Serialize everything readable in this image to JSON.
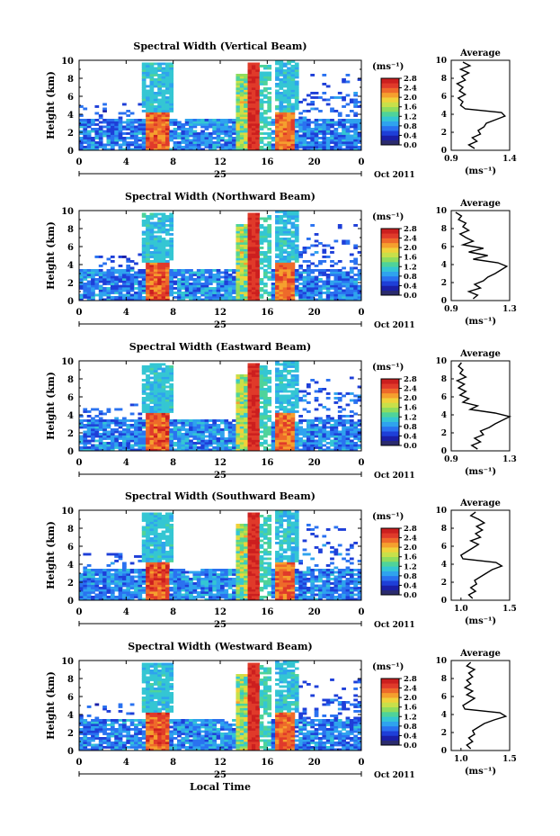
{
  "chart_data": [
    {
      "type": "heatmap",
      "title": "Spectral Width (Vertical Beam)",
      "ylabel": "Height (km)",
      "xlim": [
        0,
        24
      ],
      "ylim": [
        0,
        10
      ],
      "x_ticks": [
        "0",
        "4",
        "8",
        "12",
        "16",
        "20",
        "0"
      ],
      "y_ticks": [
        "0",
        "2",
        "4",
        "6",
        "8",
        "10"
      ],
      "day_label": "25",
      "date_label": "Oct 2011",
      "colorbar": {
        "unit": "(ms⁻¹)",
        "min": 0.0,
        "max": 2.8,
        "ticks": [
          "0.0",
          "0.4",
          "0.8",
          "1.2",
          "1.6",
          "2.0",
          "2.4",
          "2.8"
        ]
      },
      "average": {
        "title": "Average",
        "xlabel": "(ms⁻¹)",
        "xlim": [
          0.9,
          1.4
        ],
        "xticks": [
          "0.9",
          "1.4"
        ],
        "heights": [
          0.2,
          0.6,
          1,
          1.4,
          1.8,
          2.2,
          2.6,
          3,
          3.4,
          3.8,
          4.2,
          4.6,
          5,
          5.4,
          5.8,
          6.2,
          6.6,
          7,
          7.4,
          7.8,
          8.2,
          8.6,
          9,
          9.4,
          9.8
        ],
        "values": [
          1.1,
          1.05,
          1.12,
          1.08,
          1.15,
          1.13,
          1.18,
          1.2,
          1.28,
          1.36,
          1.33,
          1.02,
          0.98,
          1.0,
          0.96,
          1.02,
          0.97,
          1.0,
          0.95,
          1.02,
          0.99,
          1.05,
          0.98,
          1.06,
          1.0
        ]
      }
    },
    {
      "type": "heatmap",
      "title": "Spectral Width (Northward Beam)",
      "ylabel": "Height (km)",
      "xlim": [
        0,
        24
      ],
      "ylim": [
        0,
        10
      ],
      "x_ticks": [
        "0",
        "4",
        "8",
        "12",
        "16",
        "20",
        "0"
      ],
      "y_ticks": [
        "0",
        "2",
        "4",
        "6",
        "8",
        "10"
      ],
      "day_label": "25",
      "date_label": "Oct 2011",
      "colorbar": {
        "unit": "(ms⁻¹)",
        "min": 0.0,
        "max": 2.8,
        "ticks": [
          "0.0",
          "0.4",
          "0.8",
          "1.2",
          "1.6",
          "2.0",
          "2.4",
          "2.8"
        ]
      },
      "average": {
        "title": "Average",
        "xlabel": "(ms⁻¹)",
        "xlim": [
          0.9,
          1.3
        ],
        "xticks": [
          "0.9",
          "1.3"
        ],
        "heights": [
          0.2,
          0.6,
          1,
          1.4,
          1.8,
          2.2,
          2.6,
          3,
          3.4,
          3.8,
          4.2,
          4.6,
          5,
          5.4,
          5.8,
          6.2,
          6.6,
          7,
          7.4,
          7.8,
          8.2,
          8.6,
          9,
          9.4,
          9.8
        ],
        "values": [
          1.05,
          1.08,
          1.02,
          1.1,
          1.06,
          1.12,
          1.15,
          1.2,
          1.24,
          1.28,
          1.22,
          1.05,
          1.15,
          1.02,
          1.12,
          0.98,
          1.05,
          1.0,
          0.96,
          1.02,
          0.98,
          1.0,
          0.95,
          0.97,
          0.93
        ]
      }
    },
    {
      "type": "heatmap",
      "title": "Spectral Width (Eastward Beam)",
      "ylabel": "Height (km)",
      "xlim": [
        0,
        24
      ],
      "ylim": [
        0,
        10
      ],
      "x_ticks": [
        "0",
        "4",
        "8",
        "12",
        "16",
        "20",
        "0"
      ],
      "y_ticks": [
        "0",
        "2",
        "4",
        "6",
        "8",
        "10"
      ],
      "day_label": "25",
      "date_label": "Oct 2011",
      "colorbar": {
        "unit": "(ms⁻¹)",
        "min": 0.0,
        "max": 2.8,
        "ticks": [
          "0.0",
          "0.4",
          "0.8",
          "1.2",
          "1.6",
          "2.0",
          "2.4",
          "2.8"
        ]
      },
      "average": {
        "title": "Average",
        "xlabel": "(ms⁻¹)",
        "xlim": [
          0.9,
          1.3
        ],
        "xticks": [
          "0.9",
          "1.3"
        ],
        "heights": [
          0.2,
          0.6,
          1,
          1.4,
          1.8,
          2.2,
          2.6,
          3,
          3.4,
          3.8,
          4.2,
          4.6,
          5,
          5.4,
          5.8,
          6.2,
          6.6,
          7,
          7.4,
          7.8,
          8.2,
          8.6,
          9,
          9.4,
          9.8
        ],
        "values": [
          1.08,
          1.04,
          1.1,
          1.06,
          1.12,
          1.1,
          1.16,
          1.2,
          1.25,
          1.3,
          1.2,
          1.03,
          1.08,
          0.98,
          1.02,
          0.96,
          1.0,
          0.95,
          0.99,
          0.94,
          1.0,
          0.96,
          0.98,
          0.95,
          0.97
        ]
      }
    },
    {
      "type": "heatmap",
      "title": "Spectral Width (Southward Beam)",
      "ylabel": "Height (km)",
      "xlim": [
        0,
        24
      ],
      "ylim": [
        0,
        10
      ],
      "x_ticks": [
        "0",
        "4",
        "8",
        "12",
        "16",
        "20",
        "0"
      ],
      "y_ticks": [
        "0",
        "2",
        "4",
        "6",
        "8",
        "10"
      ],
      "day_label": "25",
      "date_label": "Oct 2011",
      "colorbar": {
        "unit": "(ms⁻¹)",
        "min": 0.0,
        "max": 2.8,
        "ticks": [
          "0.0",
          "0.4",
          "0.8",
          "1.2",
          "1.6",
          "2.0",
          "2.4",
          "2.8"
        ]
      },
      "average": {
        "title": "Average",
        "xlabel": "(ms⁻¹)",
        "xlim": [
          0.9,
          1.5
        ],
        "xticks": [
          "1.0",
          "1.5"
        ],
        "heights": [
          0.2,
          0.6,
          1,
          1.4,
          1.8,
          2.2,
          2.6,
          3,
          3.4,
          3.8,
          4.2,
          4.6,
          5,
          5.4,
          5.8,
          6.2,
          6.6,
          7,
          7.4,
          7.8,
          8.2,
          8.6,
          9,
          9.4,
          9.8
        ],
        "values": [
          1.12,
          1.08,
          1.15,
          1.1,
          1.16,
          1.14,
          1.2,
          1.26,
          1.32,
          1.42,
          1.36,
          1.02,
          1.0,
          1.06,
          1.12,
          1.18,
          1.1,
          1.2,
          1.15,
          1.22,
          1.16,
          1.24,
          1.18,
          1.1,
          1.15
        ]
      }
    },
    {
      "type": "heatmap",
      "title": "Spectral Width (Westward Beam)",
      "ylabel": "Height (km)",
      "xlabel": "Local Time",
      "xlim": [
        0,
        24
      ],
      "ylim": [
        0,
        10
      ],
      "x_ticks": [
        "0",
        "4",
        "8",
        "12",
        "16",
        "20",
        "0"
      ],
      "y_ticks": [
        "0",
        "2",
        "4",
        "6",
        "8",
        "10"
      ],
      "day_label": "25",
      "date_label": "Oct 2011",
      "colorbar": {
        "unit": "(ms⁻¹)",
        "min": 0.0,
        "max": 2.8,
        "ticks": [
          "0.0",
          "0.4",
          "0.8",
          "1.2",
          "1.6",
          "2.0",
          "2.4",
          "2.8"
        ]
      },
      "average": {
        "title": "Average",
        "xlabel": "(ms⁻¹)",
        "xlim": [
          0.9,
          1.5
        ],
        "xticks": [
          "1.0",
          "1.5"
        ],
        "heights": [
          0.2,
          0.6,
          1,
          1.4,
          1.8,
          2.2,
          2.6,
          3,
          3.4,
          3.8,
          4.2,
          4.6,
          5,
          5.4,
          5.8,
          6.2,
          6.6,
          7,
          7.4,
          7.8,
          8.2,
          8.6,
          9,
          9.4,
          9.8
        ],
        "values": [
          1.1,
          1.06,
          1.12,
          1.08,
          1.14,
          1.12,
          1.18,
          1.24,
          1.34,
          1.46,
          1.4,
          1.04,
          1.02,
          1.08,
          1.14,
          1.06,
          1.12,
          1.04,
          1.1,
          1.06,
          1.12,
          1.08,
          1.14,
          1.06,
          1.1
        ]
      }
    }
  ],
  "colors": {
    "scale": [
      "#2b2b6e",
      "#1a1fa8",
      "#1e3fd8",
      "#2a72f0",
      "#2fa3ee",
      "#34c6d3",
      "#4fd39a",
      "#8fdc5e",
      "#c8e04a",
      "#f0d23a",
      "#f5a02e",
      "#ee6a2a",
      "#e03a2a",
      "#cc1f1f"
    ],
    "missing": "#ffffff"
  }
}
